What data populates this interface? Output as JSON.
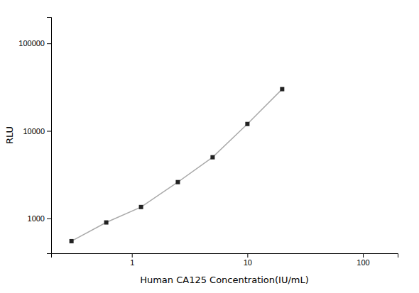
{
  "chart_data": {
    "type": "line",
    "x": [
      0.3,
      0.6,
      1.2,
      2.5,
      5.0,
      10.0,
      20.0
    ],
    "values": [
      550,
      900,
      1350,
      2600,
      5000,
      12000,
      30000
    ],
    "x_label": "Human CA125 Concentration(IU/mL)",
    "y_label": "RLU",
    "xlim": [
      0.2,
      200
    ],
    "ylim": [
      400,
      200000
    ],
    "xticks": [
      1,
      10,
      100
    ],
    "yticks": [
      1000,
      10000,
      100000
    ],
    "log": true,
    "grid": false,
    "color": "#aaaaaa",
    "marker": "square",
    "line_style": "solid"
  }
}
